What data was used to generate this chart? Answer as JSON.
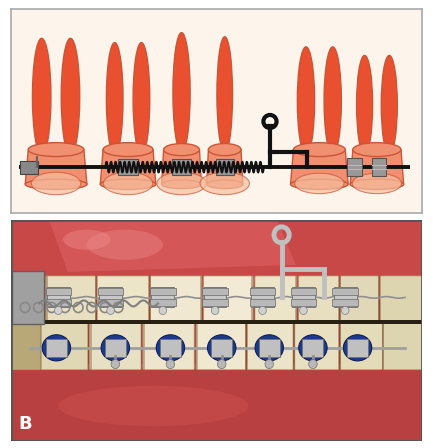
{
  "figsize": [
    4.33,
    4.48
  ],
  "dpi": 100,
  "top_panel": {
    "bg_color": "#fdf5ec",
    "border_color": "#aaaaaa",
    "teeth_fill_top": "#f07050",
    "teeth_fill_bottom": "#fde8e0",
    "teeth_outline": "#cc5535",
    "wire_color": "#111111",
    "bracket_color": "#909090",
    "spring_color": "#111111",
    "hook_color": "#111111"
  },
  "bottom_panel": {
    "gum_color": "#c85050",
    "gum_top_color": "#d86060",
    "teeth_color": "#e8dfc0",
    "teeth_highlight": "#f5f0e0",
    "bracket_color": "#b0b0b0",
    "wire_color": "#a0a0a0",
    "blue_elastic": "#1a3a8a",
    "blue_elastic2": "#2255bb",
    "label": "B",
    "label_color": "#ffffff",
    "label_fontsize": 13
  },
  "overall_bg": "#ffffff",
  "outer_border": "#888888"
}
